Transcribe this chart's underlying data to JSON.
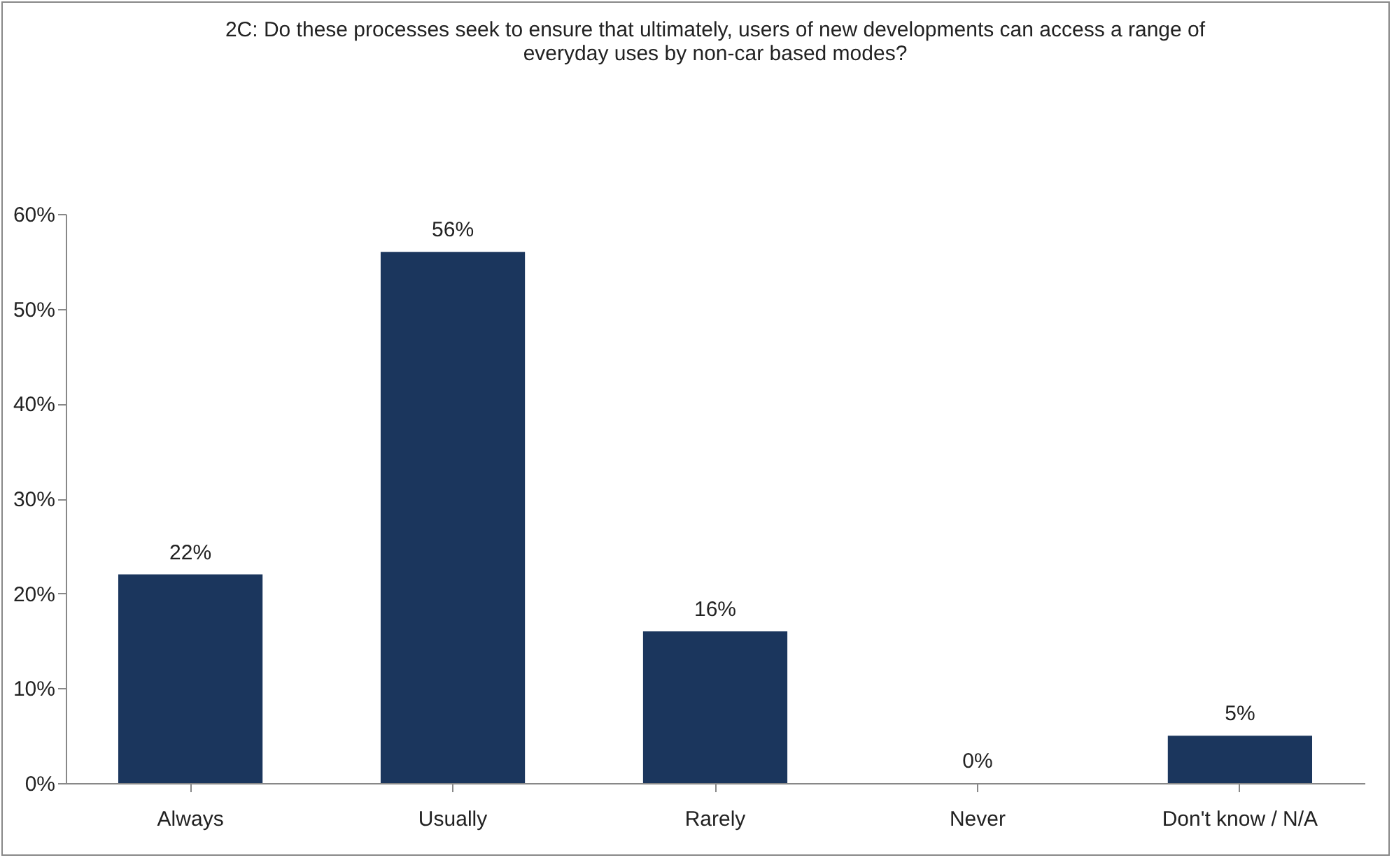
{
  "chart_data": {
    "type": "bar",
    "title": "2C: Do these processes seek to ensure that ultimately, users of new developments can access a range of everyday uses by non-car based modes?",
    "categories": [
      "Always",
      "Usually",
      "Rarely",
      "Never",
      "Don't know / N/A"
    ],
    "values": [
      22,
      56,
      16,
      0,
      5
    ],
    "value_labels": [
      "22%",
      "56%",
      "16%",
      "0%",
      "5%"
    ],
    "color": "#1b365d",
    "ylim": [
      0,
      60
    ],
    "yticks": [
      {
        "value": 0,
        "label": "0%"
      },
      {
        "value": 10,
        "label": "10%"
      },
      {
        "value": 20,
        "label": "20%"
      },
      {
        "value": 30,
        "label": "30%"
      },
      {
        "value": 40,
        "label": "40%"
      },
      {
        "value": 50,
        "label": "50%"
      },
      {
        "value": 60,
        "label": "60%"
      }
    ],
    "grid": false
  }
}
